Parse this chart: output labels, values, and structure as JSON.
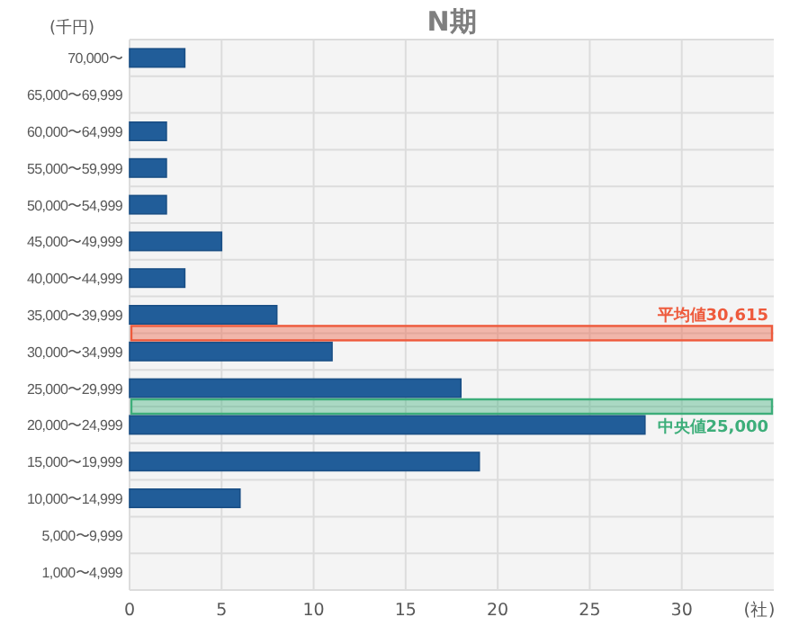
{
  "chart_data": {
    "type": "bar",
    "orientation": "horizontal",
    "title": "N期",
    "xlabel": "(社)",
    "ylabel": "(千円)",
    "categories": [
      "70,000〜",
      "65,000〜69,999",
      "60,000〜64,999",
      "55,000〜59,999",
      "50,000〜54,999",
      "45,000〜49,999",
      "40,000〜44,999",
      "35,000〜39,999",
      "30,000〜34,999",
      "25,000〜29,999",
      "20,000〜24,999",
      "15,000〜19,999",
      "10,000〜14,999",
      "5,000〜9,999",
      "1,000〜4,999"
    ],
    "values": [
      3,
      0,
      2,
      2,
      2,
      5,
      3,
      8,
      11,
      18,
      28,
      19,
      6,
      0,
      0
    ],
    "color": "#215d99",
    "xlim": [
      0,
      35
    ],
    "xticks": [
      0,
      5,
      10,
      15,
      20,
      25,
      30
    ],
    "grid": true,
    "bands": [
      {
        "axis": "y",
        "from": "35,000〜39,999",
        "to": "30,000〜34,999",
        "label": "平均値30,615",
        "color": "#ee5a3c"
      },
      {
        "axis": "y",
        "from": "25,000〜29,999",
        "to": "20,000〜24,999",
        "label": "中央値25,000",
        "color": "#3dae7a"
      }
    ]
  }
}
